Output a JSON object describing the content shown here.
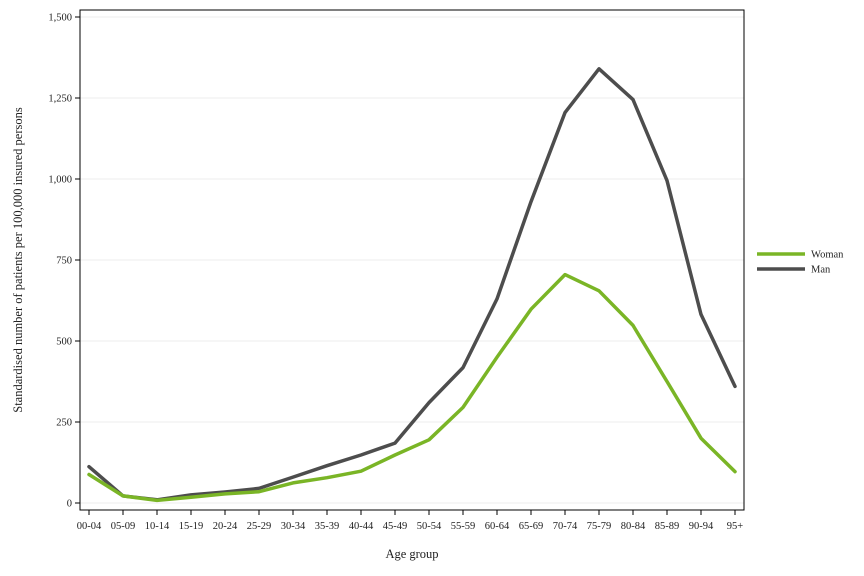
{
  "chart_data": {
    "type": "line",
    "xlabel": "Age group",
    "ylabel": "Standardised number of patients per 100,000 insured persons",
    "ylim": [
      0,
      1500
    ],
    "yticks": [
      0,
      250,
      500,
      750,
      1000,
      1250,
      1500
    ],
    "ytick_labels": [
      "0",
      "250",
      "500",
      "750",
      "1,000",
      "1,250",
      "1,500"
    ],
    "grid": true,
    "legend_position": "right",
    "categories": [
      "00-04",
      "05-09",
      "10-14",
      "15-19",
      "20-24",
      "25-29",
      "30-34",
      "35-39",
      "40-44",
      "45-49",
      "50-54",
      "55-59",
      "60-64",
      "65-69",
      "70-74",
      "75-79",
      "80-84",
      "85-89",
      "90-94",
      "95+"
    ],
    "series": [
      {
        "name": "Woman",
        "color": "#7ab526",
        "values": [
          88,
          22,
          8,
          18,
          28,
          35,
          62,
          78,
          98,
          148,
          195,
          295,
          450,
          598,
          705,
          655,
          548,
          375,
          200,
          97
        ]
      },
      {
        "name": "Man",
        "color": "#4d4d4d",
        "values": [
          112,
          22,
          10,
          25,
          34,
          45,
          80,
          115,
          148,
          185,
          310,
          418,
          630,
          930,
          1205,
          1340,
          1245,
          995,
          582,
          360
        ]
      }
    ]
  }
}
